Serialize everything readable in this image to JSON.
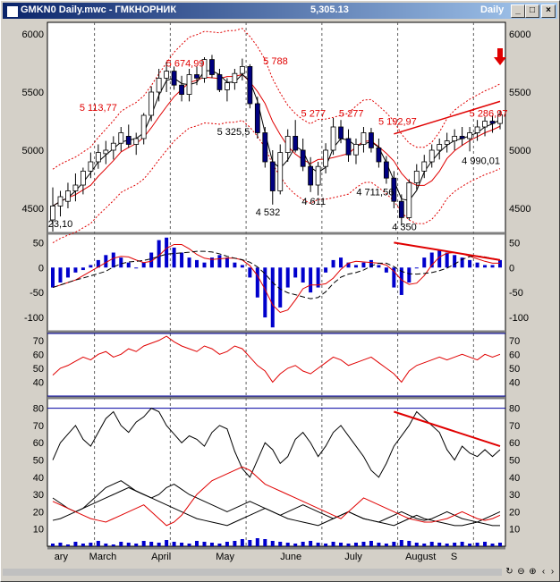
{
  "window": {
    "file_title": "GMKN0 Daily.mwc - ГМКНОРНИК",
    "price": "5,305.13",
    "period": "Daily",
    "btn_min": "_",
    "btn_max": "□",
    "btn_close": "×"
  },
  "colors": {
    "bg": "#ffffff",
    "price_up": "#ffffff",
    "price_down": "#000080",
    "red": "#e00000",
    "blue": "#0000cc",
    "black": "#000000"
  },
  "nav": {
    "prev": "‹",
    "next": "›",
    "icons": [
      "reset-icon",
      "zoom-out-icon",
      "zoom-in-icon",
      "fit-icon"
    ]
  },
  "chart_data": [
    {
      "type": "candlestick",
      "panel": "price",
      "x_labels": [
        "ary",
        "March",
        "April",
        "May",
        "June",
        "July",
        "August",
        "S"
      ],
      "y_ticks": [
        6000,
        5500,
        5000,
        4500
      ],
      "ylim": [
        4300,
        6100
      ],
      "price_ohlc": [
        [
          4400,
          4680,
          4300,
          4520
        ],
        [
          4520,
          4650,
          4430,
          4600
        ],
        [
          4560,
          4720,
          4500,
          4650
        ],
        [
          4650,
          4800,
          4560,
          4700
        ],
        [
          4700,
          4850,
          4620,
          4820
        ],
        [
          4820,
          4980,
          4760,
          4900
        ],
        [
          4900,
          5050,
          4840,
          4980
        ],
        [
          4970,
          5080,
          4880,
          5000
        ],
        [
          5000,
          5120,
          4920,
          5060
        ],
        [
          5060,
          5200,
          4990,
          5150
        ],
        [
          5120,
          5220,
          5020,
          5050
        ],
        [
          5050,
          5150,
          4960,
          5100
        ],
        [
          5100,
          5320,
          5050,
          5300
        ],
        [
          5300,
          5550,
          5250,
          5500
        ],
        [
          5500,
          5700,
          5420,
          5620
        ],
        [
          5620,
          5760,
          5500,
          5680
        ],
        [
          5680,
          5720,
          5520,
          5560
        ],
        [
          5560,
          5640,
          5420,
          5480
        ],
        [
          5480,
          5700,
          5420,
          5650
        ],
        [
          5650,
          5720,
          5560,
          5620
        ],
        [
          5620,
          5800,
          5580,
          5780
        ],
        [
          5780,
          5820,
          5620,
          5650
        ],
        [
          5650,
          5700,
          5500,
          5520
        ],
        [
          5520,
          5620,
          5420,
          5580
        ],
        [
          5580,
          5700,
          5520,
          5660
        ],
        [
          5660,
          5788,
          5600,
          5720
        ],
        [
          5720,
          5740,
          5360,
          5400
        ],
        [
          5400,
          5460,
          5100,
          5150
        ],
        [
          5150,
          5200,
          4850,
          4900
        ],
        [
          4900,
          5000,
          4532,
          4650
        ],
        [
          4650,
          5050,
          4620,
          4980
        ],
        [
          4980,
          5180,
          4900,
          5120
        ],
        [
          5120,
          5260,
          4980,
          5000
        ],
        [
          5000,
          5100,
          4820,
          4860
        ],
        [
          4860,
          4940,
          4640,
          4700
        ],
        [
          4700,
          4900,
          4611,
          4860
        ],
        [
          4860,
          5060,
          4800,
          5000
        ],
        [
          5000,
          5277,
          4960,
          5200
        ],
        [
          5200,
          5260,
          5060,
          5100
        ],
        [
          5100,
          5180,
          4900,
          4960
        ],
        [
          4960,
          5100,
          4880,
          5050
        ],
        [
          5050,
          5200,
          4980,
          5150
        ],
        [
          5150,
          5192,
          4980,
          5020
        ],
        [
          5020,
          5100,
          4850,
          4900
        ],
        [
          4900,
          4950,
          4711,
          4760
        ],
        [
          4760,
          4820,
          4500,
          4560
        ],
        [
          4560,
          4620,
          4350,
          4420
        ],
        [
          4420,
          4750,
          4400,
          4720
        ],
        [
          4720,
          4880,
          4660,
          4820
        ],
        [
          4820,
          4960,
          4760,
          4900
        ],
        [
          4900,
          5050,
          4850,
          5000
        ],
        [
          5000,
          5100,
          4920,
          5050
        ],
        [
          5050,
          5150,
          4980,
          5080
        ],
        [
          5080,
          5180,
          5000,
          5120
        ],
        [
          5120,
          5200,
          5040,
          5100
        ],
        [
          5100,
          5200,
          4990,
          5150
        ],
        [
          5150,
          5260,
          5080,
          5200
        ],
        [
          5200,
          5286,
          5120,
          5250
        ],
        [
          5250,
          5300,
          5150,
          5230
        ],
        [
          5230,
          5340,
          5180,
          5305
        ]
      ],
      "annotations": [
        "5 674,99",
        "5 788",
        "5 113,77",
        "5 325,5",
        "5 277",
        "5 277",
        "5 192,97",
        "5 286,97",
        "4 711,56",
        "4 990,01",
        "4 532",
        "4 611",
        "4 350",
        "23,10"
      ],
      "series": [
        {
          "kind": "moving-average",
          "color": "#000000"
        },
        {
          "kind": "moving-average",
          "color": "#e00000"
        },
        {
          "kind": "envelope-upper",
          "color": "#e00000"
        },
        {
          "kind": "envelope-lower",
          "color": "#e00000"
        }
      ],
      "trendline": {
        "from": [
          45,
          5140
        ],
        "to": [
          59,
          5420
        ]
      },
      "arrow": "down-arrow-icon"
    },
    {
      "type": "bar",
      "panel": "macd",
      "y_ticks": [
        50,
        0,
        -50,
        -100
      ],
      "ylim": [
        -125,
        65
      ],
      "values": [
        -40,
        -30,
        -20,
        -10,
        -5,
        5,
        15,
        25,
        30,
        20,
        10,
        0,
        10,
        30,
        55,
        60,
        40,
        30,
        20,
        15,
        10,
        20,
        25,
        20,
        10,
        5,
        -20,
        -60,
        -100,
        -120,
        -80,
        -40,
        -20,
        -30,
        -50,
        -40,
        -10,
        15,
        20,
        10,
        5,
        10,
        15,
        5,
        -10,
        -40,
        -55,
        -30,
        0,
        20,
        30,
        35,
        30,
        25,
        20,
        15,
        10,
        5,
        5,
        15
      ],
      "lines": [
        {
          "name": "",
          "color": "#e00000"
        },
        {
          "name": "",
          "color": "#000000"
        }
      ],
      "trendline": {
        "from": [
          45,
          50
        ],
        "to": [
          59,
          15
        ]
      }
    },
    {
      "type": "line",
      "panel": "rsi",
      "y_ticks": [
        70,
        60,
        50,
        40
      ],
      "ylim": [
        30,
        75
      ],
      "levels": [
        75,
        30
      ],
      "values": [
        45,
        50,
        52,
        55,
        58,
        56,
        60,
        62,
        58,
        60,
        64,
        62,
        66,
        68,
        70,
        73,
        69,
        66,
        64,
        62,
        66,
        64,
        60,
        62,
        66,
        64,
        58,
        52,
        48,
        40,
        46,
        50,
        52,
        48,
        46,
        50,
        54,
        58,
        56,
        52,
        54,
        56,
        58,
        54,
        50,
        46,
        40,
        48,
        52,
        54,
        56,
        58,
        56,
        58,
        60,
        58,
        56,
        60,
        58,
        60
      ]
    },
    {
      "type": "line",
      "panel": "stochastic-adx",
      "y_ticks": [
        80,
        70,
        60,
        50,
        40,
        30,
        20,
        10
      ],
      "ylim": [
        0,
        85
      ],
      "upper_values": [
        50,
        60,
        65,
        70,
        62,
        58,
        66,
        74,
        78,
        70,
        66,
        72,
        75,
        80,
        78,
        70,
        65,
        60,
        64,
        62,
        58,
        66,
        70,
        68,
        55,
        45,
        40,
        50,
        60,
        56,
        48,
        52,
        62,
        66,
        60,
        52,
        58,
        66,
        70,
        64,
        58,
        52,
        44,
        40,
        48,
        58,
        64,
        70,
        78,
        74,
        70,
        66,
        56,
        50,
        58,
        54,
        52,
        56,
        52,
        56
      ],
      "upper_trendline": {
        "from": [
          45,
          78
        ],
        "to": [
          59,
          58
        ]
      },
      "lower_series": [
        {
          "color": "#000000",
          "values": [
            28,
            25,
            22,
            20,
            22,
            26,
            30,
            34,
            36,
            38,
            35,
            32,
            30,
            28,
            30,
            34,
            36,
            33,
            30,
            28,
            26,
            24,
            22,
            20,
            22,
            24,
            26,
            24,
            22,
            20,
            18,
            20,
            22,
            24,
            22,
            20,
            18,
            16,
            18,
            20,
            18,
            16,
            15,
            14,
            16,
            18,
            20,
            18,
            16,
            15,
            16,
            18,
            20,
            18,
            16,
            15,
            14,
            16,
            18,
            20
          ]
        },
        {
          "color": "#000000",
          "values": [
            15,
            16,
            18,
            20,
            22,
            24,
            26,
            28,
            30,
            32,
            34,
            32,
            30,
            28,
            26,
            24,
            22,
            20,
            18,
            16,
            15,
            14,
            13,
            12,
            14,
            16,
            18,
            20,
            22,
            20,
            18,
            16,
            15,
            14,
            13,
            12,
            14,
            16,
            18,
            20,
            18,
            16,
            15,
            14,
            13,
            12,
            14,
            16,
            18,
            16,
            15,
            14,
            13,
            12,
            12,
            13,
            14,
            13,
            12,
            12
          ]
        },
        {
          "color": "#e00000",
          "values": [
            26,
            24,
            22,
            20,
            18,
            16,
            15,
            14,
            16,
            18,
            20,
            22,
            24,
            20,
            16,
            12,
            14,
            18,
            24,
            30,
            34,
            38,
            40,
            42,
            44,
            46,
            44,
            40,
            36,
            34,
            32,
            30,
            28,
            26,
            24,
            22,
            20,
            18,
            16,
            20,
            24,
            28,
            26,
            24,
            22,
            20,
            18,
            16,
            15,
            14,
            14,
            15,
            16,
            18,
            20,
            18,
            16,
            15,
            16,
            18
          ]
        }
      ],
      "volume": [
        3,
        4,
        2,
        5,
        3,
        4,
        6,
        3,
        2,
        5,
        4,
        3,
        6,
        5,
        4,
        7,
        5,
        4,
        3,
        6,
        5,
        4,
        3,
        5,
        6,
        8,
        7,
        9,
        8,
        6,
        5,
        4,
        3,
        5,
        6,
        4,
        3,
        5,
        4,
        3,
        4,
        5,
        6,
        4,
        3,
        5,
        7,
        6,
        4,
        3,
        5,
        4,
        3,
        4,
        5,
        3,
        4,
        5,
        3,
        4
      ]
    }
  ]
}
